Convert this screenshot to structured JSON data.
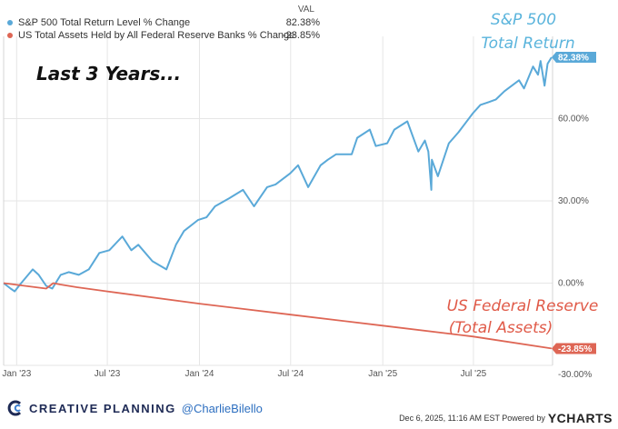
{
  "legend": {
    "header": "VAL",
    "items": [
      {
        "label": "S&P 500 Total Return Level % Change",
        "value": "82.38%",
        "color": "#5aa9d8"
      },
      {
        "label": "US Total Assets Held by All Federal Reserve Banks % Change",
        "value": "-23.85%",
        "color": "#de6655"
      }
    ]
  },
  "annotations": {
    "period": "Last 3 Years...",
    "sp_line1": "S&P 500",
    "sp_line2": "Total Return",
    "fed_line1": "US Federal Reserve",
    "fed_line2": "(Total Assets)"
  },
  "footer": {
    "brand": "CREATIVE PLANNING",
    "handle": "@CharlieBilello",
    "timestamp": "Dec 6, 2025, 11:16 AM EST Powered by",
    "ycharts": "YCHARTS"
  },
  "chart_data": {
    "type": "line",
    "xlim": [
      "2022-12-06",
      "2025-12-06"
    ],
    "ylim": [
      -30,
      90
    ],
    "y_ticks": [
      {
        "value": 60,
        "label": "60.00%"
      },
      {
        "value": 30,
        "label": "30.00%"
      },
      {
        "value": 0,
        "label": "0.00%"
      },
      {
        "value": -30,
        "label": "-30.00%"
      }
    ],
    "x_ticks": [
      {
        "date": "2023-01-01",
        "label": "Jan '23"
      },
      {
        "date": "2023-07-01",
        "label": "Jul '23"
      },
      {
        "date": "2024-01-01",
        "label": "Jan '24"
      },
      {
        "date": "2024-07-01",
        "label": "Jul '24"
      },
      {
        "date": "2025-01-01",
        "label": "Jan '25"
      },
      {
        "date": "2025-07-01",
        "label": "Jul '25"
      }
    ],
    "grid": true,
    "series": [
      {
        "name": "S&P 500 Total Return Level % Change",
        "color": "#5aa9d8",
        "end_label": "82.38%",
        "points": [
          [
            "2022-12-06",
            0
          ],
          [
            "2022-12-20",
            -2
          ],
          [
            "2022-12-28",
            -3
          ],
          [
            "2023-01-10",
            0
          ],
          [
            "2023-02-02",
            5
          ],
          [
            "2023-02-14",
            3
          ],
          [
            "2023-03-01",
            -1
          ],
          [
            "2023-03-13",
            -2
          ],
          [
            "2023-03-30",
            3
          ],
          [
            "2023-04-15",
            4
          ],
          [
            "2023-05-05",
            3
          ],
          [
            "2023-05-25",
            5
          ],
          [
            "2023-06-15",
            11
          ],
          [
            "2023-07-05",
            12
          ],
          [
            "2023-07-31",
            17
          ],
          [
            "2023-08-18",
            12
          ],
          [
            "2023-09-01",
            14
          ],
          [
            "2023-09-29",
            8
          ],
          [
            "2023-10-27",
            5
          ],
          [
            "2023-11-15",
            14
          ],
          [
            "2023-12-01",
            19
          ],
          [
            "2023-12-29",
            23
          ],
          [
            "2024-01-15",
            24
          ],
          [
            "2024-02-01",
            28
          ],
          [
            "2024-03-01",
            31
          ],
          [
            "2024-03-28",
            34
          ],
          [
            "2024-04-19",
            28
          ],
          [
            "2024-05-15",
            35
          ],
          [
            "2024-06-01",
            36
          ],
          [
            "2024-06-30",
            40
          ],
          [
            "2024-07-16",
            43
          ],
          [
            "2024-08-05",
            35
          ],
          [
            "2024-08-30",
            43
          ],
          [
            "2024-09-13",
            45
          ],
          [
            "2024-09-30",
            47
          ],
          [
            "2024-10-31",
            47
          ],
          [
            "2024-11-11",
            53
          ],
          [
            "2024-12-06",
            56
          ],
          [
            "2024-12-18",
            50
          ],
          [
            "2025-01-10",
            51
          ],
          [
            "2025-01-24",
            56
          ],
          [
            "2025-02-19",
            59
          ],
          [
            "2025-03-13",
            48
          ],
          [
            "2025-03-26",
            52
          ],
          [
            "2025-04-02",
            48
          ],
          [
            "2025-04-08",
            34
          ],
          [
            "2025-04-09",
            45
          ],
          [
            "2025-04-21",
            39
          ],
          [
            "2025-05-13",
            51
          ],
          [
            "2025-06-01",
            55
          ],
          [
            "2025-06-30",
            62
          ],
          [
            "2025-07-15",
            65
          ],
          [
            "2025-07-31",
            66
          ],
          [
            "2025-08-15",
            67
          ],
          [
            "2025-09-01",
            70
          ],
          [
            "2025-09-30",
            74
          ],
          [
            "2025-10-10",
            71
          ],
          [
            "2025-10-28",
            79
          ],
          [
            "2025-11-07",
            76
          ],
          [
            "2025-11-12",
            81
          ],
          [
            "2025-11-20",
            72
          ],
          [
            "2025-11-26",
            80
          ],
          [
            "2025-12-04",
            82.38
          ]
        ]
      },
      {
        "name": "US Total Assets Held by All Federal Reserve Banks % Change",
        "color": "#de6655",
        "end_label": "-23.85%",
        "points": [
          [
            "2022-12-06",
            0
          ],
          [
            "2023-03-01",
            -2
          ],
          [
            "2023-03-15",
            0
          ],
          [
            "2023-03-29",
            -0.5
          ],
          [
            "2023-05-01",
            -1.5
          ],
          [
            "2023-07-01",
            -3
          ],
          [
            "2024-01-01",
            -7.5
          ],
          [
            "2024-07-01",
            -11.5
          ],
          [
            "2025-01-01",
            -15.5
          ],
          [
            "2025-07-01",
            -19.5
          ],
          [
            "2025-12-04",
            -23.85
          ]
        ]
      }
    ]
  }
}
